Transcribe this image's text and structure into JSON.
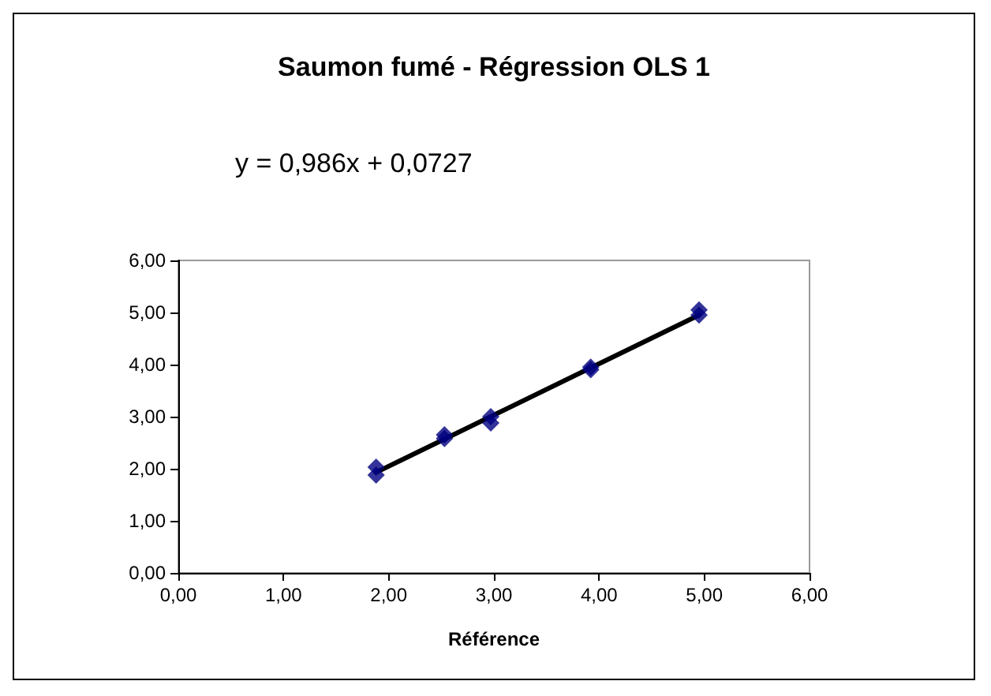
{
  "chart_data": {
    "type": "scatter",
    "title": "Saumon fumé - Régression OLS 1",
    "xlabel": "Référence",
    "x": [
      1.88,
      1.88,
      2.53,
      2.53,
      2.97,
      2.97,
      3.92,
      3.92,
      4.95,
      4.95
    ],
    "series": [
      {
        "type": "scatter",
        "color": "#000080",
        "marker": "diamond",
        "values": [
          2.03,
          1.88,
          2.65,
          2.58,
          3.0,
          2.88,
          3.95,
          3.9,
          5.05,
          4.95
        ]
      },
      {
        "type": "line",
        "color": "#000000",
        "marker": "none",
        "x": [
          1.88,
          4.95
        ],
        "values": [
          1.93,
          4.95
        ]
      }
    ],
    "annotations": [
      "y = 0,986x + 0,0727"
    ],
    "xlim": [
      0,
      6
    ],
    "xticks": [
      {
        "value": 0,
        "label": "0,00"
      },
      {
        "value": 1,
        "label": "1,00"
      },
      {
        "value": 2,
        "label": "2,00"
      },
      {
        "value": 3,
        "label": "3,00"
      },
      {
        "value": 4,
        "label": "4,00"
      },
      {
        "value": 5,
        "label": "5,00"
      },
      {
        "value": 6,
        "label": "6,00"
      }
    ],
    "ylim": [
      0,
      6
    ],
    "yticks": [
      {
        "value": 0,
        "label": "0,00"
      },
      {
        "value": 1,
        "label": "1,00"
      },
      {
        "value": 2,
        "label": "2,00"
      },
      {
        "value": 3,
        "label": "3,00"
      },
      {
        "value": 4,
        "label": "4,00"
      },
      {
        "value": 5,
        "label": "5,00"
      },
      {
        "value": 6,
        "label": "6,00"
      }
    ],
    "grid": false
  }
}
